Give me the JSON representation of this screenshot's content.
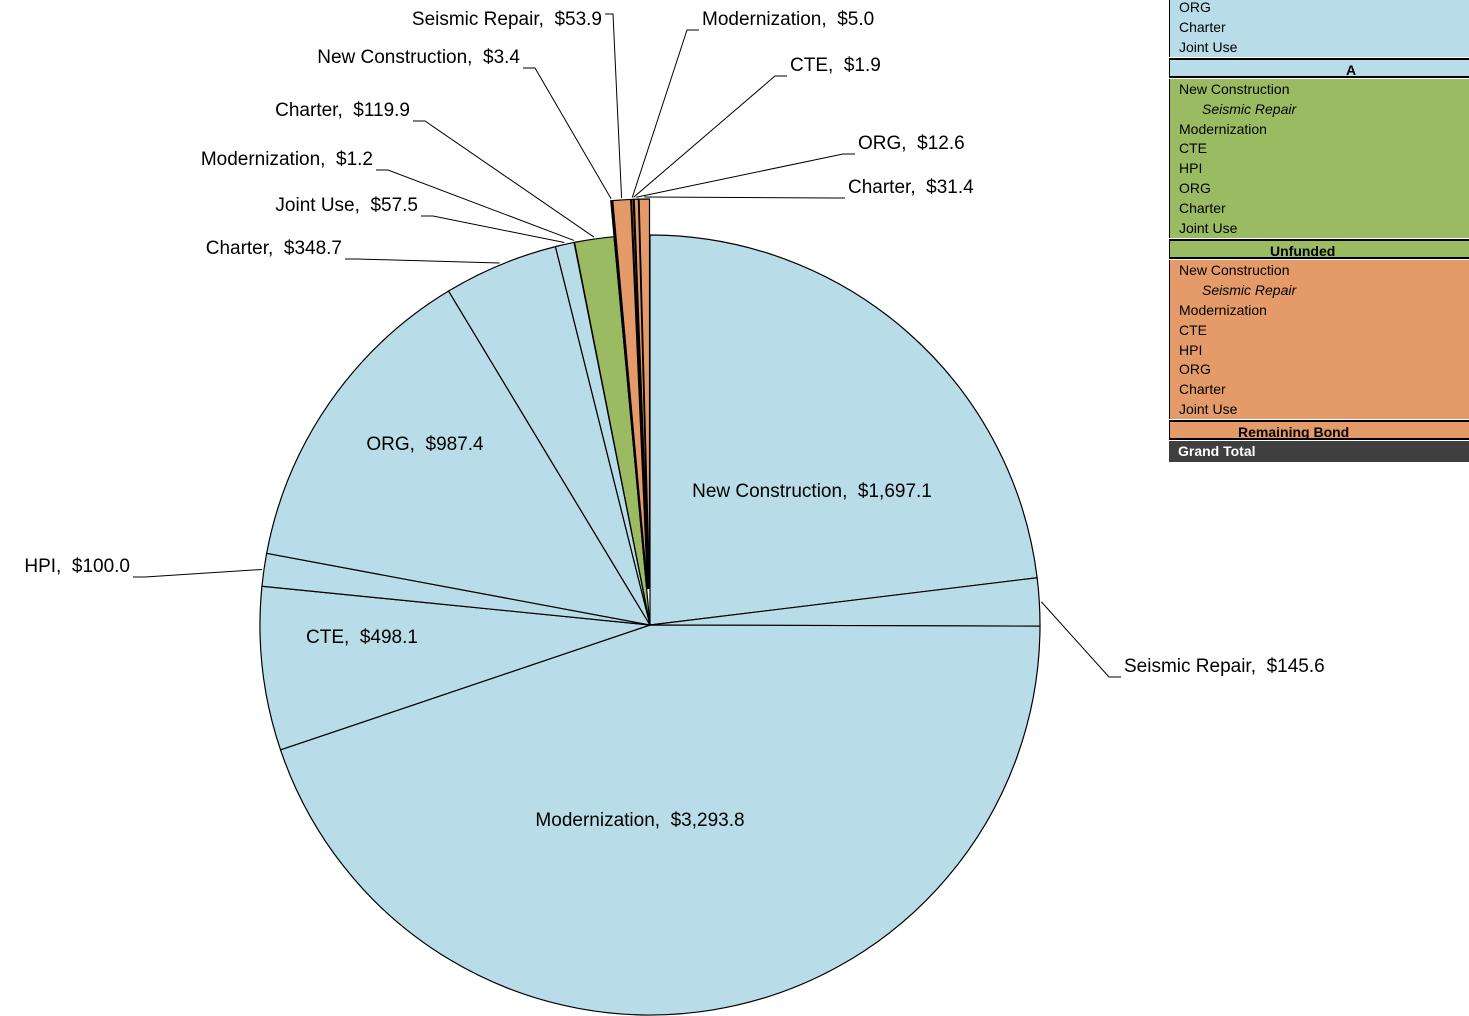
{
  "chart_data": {
    "type": "pie",
    "categories": [
      "New Construction",
      "Seismic Repair",
      "Modernization",
      "CTE",
      "HPI",
      "ORG",
      "Charter",
      "Joint Use",
      "Modernization",
      "Charter",
      "New Construction",
      "Seismic Repair",
      "Modernization",
      "CTE",
      "ORG",
      "Charter"
    ],
    "values": [
      1697.1,
      145.6,
      3293.8,
      498.1,
      100.0,
      987.4,
      348.7,
      57.5,
      1.2,
      119.9,
      3.4,
      53.9,
      5.0,
      1.9,
      12.6,
      31.4
    ],
    "value_labels": [
      "$1,697.1",
      "$145.6",
      "$3,293.8",
      "$498.1",
      "$100.0",
      "$987.4",
      "$348.7",
      "$57.5",
      "$1.2",
      "$119.9",
      "$3.4",
      "$53.9",
      "$5.0",
      "$1.9",
      "$12.6",
      "$31.4"
    ],
    "label_separator": ",  ",
    "colors": [
      "#b8dde8",
      "#b8dde8",
      "#b8dde8",
      "#b8dde8",
      "#b8dde8",
      "#b8dde8",
      "#b8dde8",
      "#b8dde8",
      "#9bbb63",
      "#9bbb63",
      "#e49b69",
      "#e49b69",
      "#e49b69",
      "#e49b69",
      "#e49b69",
      "#e49b69"
    ]
  },
  "table": {
    "sections": [
      {
        "color": "#b8dde8",
        "rows": [
          "ORG",
          "Charter",
          "Joint Use"
        ],
        "header": "A"
      },
      {
        "color": "#9bbb63",
        "rows": [
          "New Construction",
          "Seismic Repair",
          "Modernization",
          "CTE",
          "HPI",
          "ORG",
          "Charter",
          "Joint Use"
        ],
        "header": "Unfunded"
      },
      {
        "color": "#e49b69",
        "rows": [
          "New Construction",
          "Seismic Repair",
          "Modernization",
          "CTE",
          "HPI",
          "ORG",
          "Charter",
          "Joint Use"
        ],
        "header": "Remaining Bond"
      }
    ],
    "total": "Grand Total"
  }
}
